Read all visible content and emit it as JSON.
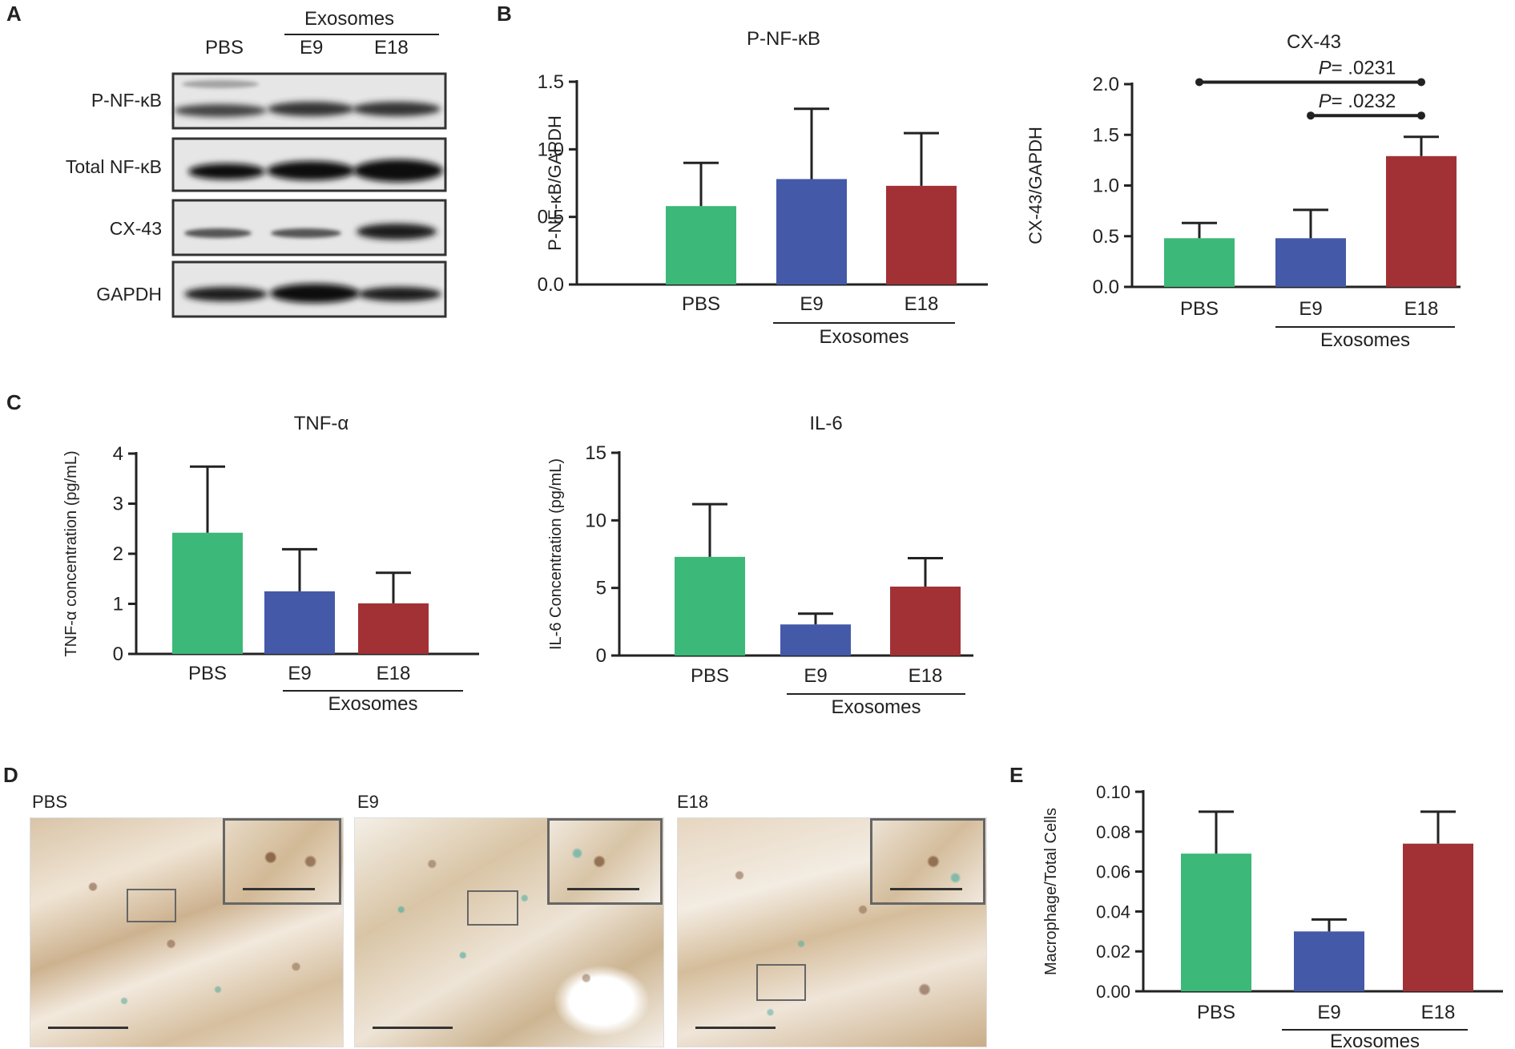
{
  "panels": {
    "A": "A",
    "B": "B",
    "C": "C",
    "D": "D",
    "E": "E"
  },
  "blot": {
    "group_title": "Exosomes",
    "lanes": [
      "PBS",
      "E9",
      "E18"
    ],
    "rows": [
      "P-NF-κB",
      "Total NF-κB",
      "CX-43",
      "GAPDH"
    ]
  },
  "histology": {
    "labels": [
      "PBS",
      "E9",
      "E18"
    ]
  },
  "colors": {
    "PBS": "#3cb878",
    "E9": "#4459a8",
    "E18": "#a23135",
    "axis": "#222222"
  },
  "chart_data": [
    {
      "id": "pnfkb",
      "type": "bar",
      "title": "P-NF-κB",
      "ylabel": "P-NF-κB/GAPDH",
      "categories": [
        "PBS",
        "E9",
        "E18"
      ],
      "group_label": "Exosomes",
      "values": [
        0.58,
        0.78,
        0.73
      ],
      "errors": [
        0.32,
        0.52,
        0.39
      ],
      "ylim": [
        0,
        1.5
      ],
      "yticks": [
        "0.0",
        "0.5",
        "1.0",
        "1.5"
      ]
    },
    {
      "id": "cx43",
      "type": "bar",
      "title": "CX-43",
      "ylabel": "CX-43/GAPDH",
      "categories": [
        "PBS",
        "E9",
        "E18"
      ],
      "group_label": "Exosomes",
      "values": [
        0.48,
        0.48,
        1.29
      ],
      "errors": [
        0.15,
        0.28,
        0.19
      ],
      "ylim": [
        0,
        2.0
      ],
      "yticks": [
        "0.0",
        "0.5",
        "1.0",
        "1.5",
        "2.0"
      ],
      "significance": [
        {
          "from": 0,
          "to": 2,
          "level": 2.02,
          "p_italic": "P",
          "p_text": "= .0231"
        },
        {
          "from": 1,
          "to": 2,
          "level": 1.69,
          "p_italic": "P",
          "p_text": "= .0232"
        }
      ]
    },
    {
      "id": "tnfa",
      "type": "bar",
      "title": "TNF-α",
      "ylabel": "TNF-α concentration  (pg/mL)",
      "categories": [
        "PBS",
        "E9",
        "E18"
      ],
      "group_label": "Exosomes",
      "values": [
        2.42,
        1.25,
        1.01
      ],
      "errors": [
        1.32,
        0.84,
        0.61
      ],
      "ylim": [
        0,
        4
      ],
      "yticks": [
        "0",
        "1",
        "2",
        "3",
        "4"
      ]
    },
    {
      "id": "il6",
      "type": "bar",
      "title": "IL-6",
      "ylabel": "IL-6 Concentration  (pg/mL)",
      "categories": [
        "PBS",
        "E9",
        "E18"
      ],
      "group_label": "Exosomes",
      "values": [
        7.3,
        2.3,
        5.1
      ],
      "errors": [
        3.9,
        0.8,
        2.1
      ],
      "ylim": [
        0,
        15
      ],
      "yticks": [
        "0",
        "5",
        "10",
        "15"
      ]
    },
    {
      "id": "macro",
      "type": "bar",
      "title": "",
      "ylabel": "Macrophage/Total Cells",
      "categories": [
        "PBS",
        "E9",
        "E18"
      ],
      "group_label": "Exosomes",
      "values": [
        0.069,
        0.03,
        0.074
      ],
      "errors": [
        0.021,
        0.006,
        0.016
      ],
      "ylim": [
        0,
        0.1
      ],
      "yticks": [
        "0.00",
        "0.02",
        "0.04",
        "0.06",
        "0.08",
        "0.10"
      ]
    }
  ]
}
